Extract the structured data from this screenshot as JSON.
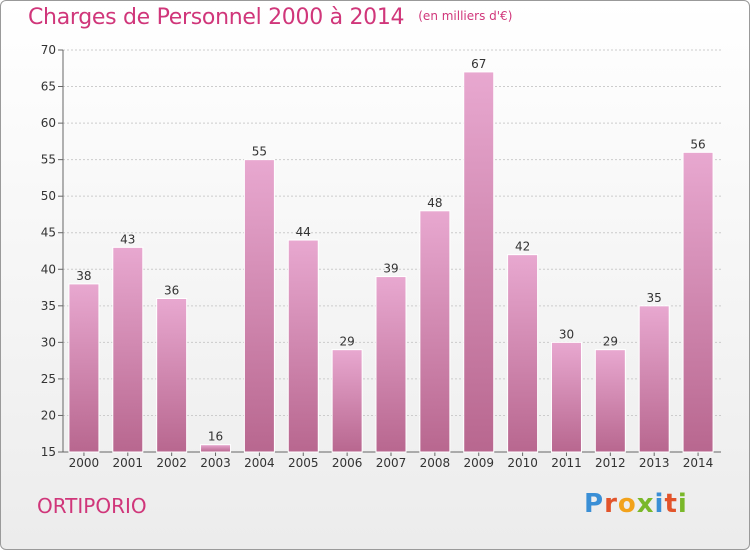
{
  "header": {
    "title": "Charges de Personnel 2000 à 2014",
    "subtitle": "(en milliers d'€)"
  },
  "footer": {
    "city": "ORTIPORIO",
    "logo": "Proxiti"
  },
  "colors": {
    "title": "#d0367a",
    "bar_top": "#e8a8d0",
    "bar_bottom": "#b8678f"
  },
  "chart_data": {
    "type": "bar",
    "categories": [
      "2000",
      "2001",
      "2002",
      "2003",
      "2004",
      "2005",
      "2006",
      "2007",
      "2008",
      "2009",
      "2010",
      "2011",
      "2012",
      "2013",
      "2014"
    ],
    "values": [
      38,
      43,
      36,
      16,
      55,
      44,
      29,
      39,
      48,
      67,
      42,
      30,
      29,
      35,
      56
    ],
    "ylim": [
      15,
      70
    ],
    "yticks": [
      15,
      20,
      25,
      30,
      35,
      40,
      45,
      50,
      55,
      60,
      65,
      70
    ],
    "grid": true,
    "legend": "none"
  }
}
